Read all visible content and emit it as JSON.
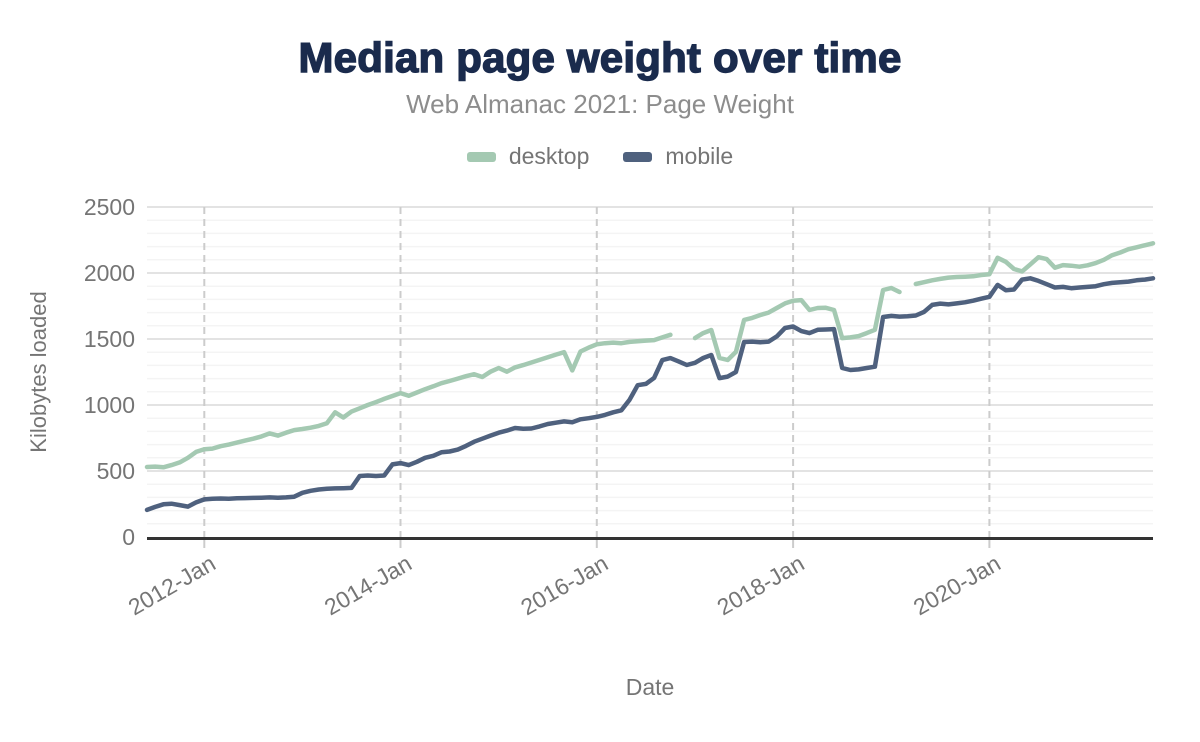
{
  "header": {
    "title": "Median page weight over time",
    "subtitle": "Web Almanac 2021: Page Weight"
  },
  "legend": {
    "items": [
      {
        "label": "desktop",
        "color": "#a4c9b2"
      },
      {
        "label": "mobile",
        "color": "#4f617e"
      }
    ]
  },
  "colors": {
    "title": "#1a2b4d",
    "subtitle": "#8d8d8d",
    "axis_text": "#757575",
    "axis_line": "#333333",
    "grid_major": "#e3e3e3",
    "grid_minor": "#f4f4f4",
    "grid_vertical_dashed": "#cccccc",
    "background": "#ffffff"
  },
  "chart_data": {
    "type": "line",
    "title": "Median page weight over time",
    "subtitle": "Web Almanac 2021: Page Weight",
    "xlabel": "Date",
    "ylabel": "Kilobytes loaded",
    "ylim": [
      0,
      2500
    ],
    "y_ticks": [
      0,
      500,
      1000,
      1500,
      2000,
      2500
    ],
    "y_minor_step": 100,
    "grid": {
      "horizontal": "solid",
      "vertical": "dashed-at-ticks"
    },
    "legend_position": "top",
    "x_start_month": "2011-06",
    "x_end_month": "2021-09",
    "x_ticks": [
      {
        "label": "2012-Jan",
        "index": 7
      },
      {
        "label": "2014-Jan",
        "index": 31
      },
      {
        "label": "2016-Jan",
        "index": 55
      },
      {
        "label": "2018-Jan",
        "index": 79
      },
      {
        "label": "2020-Jan",
        "index": 103
      }
    ],
    "series": [
      {
        "name": "desktop",
        "color": "#a4c9b2",
        "values": [
          530,
          533,
          528,
          545,
          565,
          600,
          645,
          665,
          670,
          688,
          700,
          715,
          730,
          745,
          762,
          785,
          768,
          790,
          810,
          818,
          828,
          842,
          862,
          945,
          905,
          950,
          975,
          1000,
          1022,
          1046,
          1068,
          1090,
          1070,
          1095,
          1120,
          1142,
          1165,
          1182,
          1200,
          1218,
          1233,
          1212,
          1252,
          1280,
          1252,
          1285,
          1302,
          1322,
          1342,
          1362,
          1382,
          1400,
          1262,
          1405,
          1435,
          1460,
          1468,
          1473,
          1468,
          1478,
          1483,
          1488,
          1492,
          1512,
          1532,
          null,
          null,
          1507,
          1545,
          1568,
          1356,
          1341,
          1402,
          1645,
          1660,
          1682,
          1700,
          1735,
          1770,
          1790,
          1795,
          1720,
          1735,
          1736,
          1720,
          1507,
          1512,
          1522,
          1545,
          1570,
          1871,
          1886,
          1856,
          null,
          1917,
          1930,
          1945,
          1955,
          1965,
          1970,
          1972,
          1975,
          1985,
          1990,
          2115,
          2085,
          2030,
          2012,
          2065,
          2120,
          2105,
          2040,
          2060,
          2055,
          2048,
          2058,
          2075,
          2100,
          2135,
          2155,
          2180,
          2195,
          2210,
          2225
        ]
      },
      {
        "name": "mobile",
        "color": "#4f617e",
        "values": [
          205,
          228,
          248,
          252,
          242,
          230,
          262,
          285,
          290,
          292,
          290,
          293,
          295,
          296,
          298,
          300,
          298,
          300,
          305,
          335,
          350,
          360,
          365,
          368,
          370,
          372,
          462,
          466,
          462,
          466,
          550,
          560,
          545,
          570,
          600,
          615,
          642,
          648,
          662,
          690,
          722,
          745,
          768,
          790,
          806,
          826,
          820,
          822,
          838,
          856,
          866,
          876,
          870,
          892,
          900,
          910,
          925,
          945,
          960,
          1040,
          1150,
          1160,
          1205,
          1340,
          1355,
          1330,
          1303,
          1320,
          1356,
          1379,
          1204,
          1215,
          1250,
          1477,
          1480,
          1476,
          1480,
          1520,
          1583,
          1595,
          1560,
          1545,
          1570,
          1572,
          1575,
          1280,
          1265,
          1270,
          1280,
          1290,
          1667,
          1675,
          1670,
          1672,
          1678,
          1705,
          1758,
          1768,
          1762,
          1770,
          1778,
          1790,
          1805,
          1820,
          1910,
          1870,
          1875,
          1950,
          1960,
          1940,
          1915,
          1890,
          1895,
          1885,
          1890,
          1895,
          1900,
          1915,
          1925,
          1930,
          1935,
          1945,
          1950,
          1960
        ]
      }
    ]
  }
}
